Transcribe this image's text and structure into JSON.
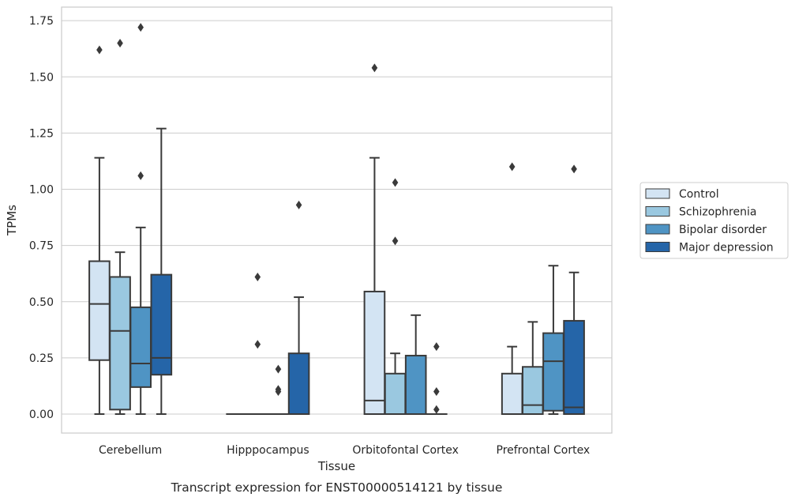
{
  "caption": "Transcript expression for ENST00000514121 by tissue",
  "chart_data": {
    "type": "box",
    "xlabel": "Tissue",
    "ylabel": "TPMs",
    "ylim": [
      -0.08,
      1.81
    ],
    "yticks": [
      "0.00",
      "0.25",
      "0.50",
      "0.75",
      "1.00",
      "1.25",
      "1.50",
      "1.75"
    ],
    "grid": "horizontal",
    "legend_position": "right",
    "categories": [
      "Cerebellum",
      "Hipppocampus",
      "Orbitofontal Cortex",
      "Prefrontal Cortex"
    ],
    "series": [
      {
        "name": "Control",
        "color": "#d3e4f3",
        "boxes": [
          {
            "whislo": 0.0,
            "q1": 0.24,
            "med": 0.49,
            "q3": 0.68,
            "whishi": 1.14,
            "fliers": [
              1.62
            ]
          },
          {
            "whislo": 0.0,
            "q1": 0.0,
            "med": 0.0,
            "q3": 0.0,
            "whishi": 0.0,
            "fliers": []
          },
          {
            "whislo": 0.0,
            "q1": 0.0,
            "med": 0.06,
            "q3": 0.545,
            "whishi": 1.14,
            "fliers": [
              1.54
            ]
          },
          {
            "whislo": 0.0,
            "q1": 0.0,
            "med": 0.0,
            "q3": 0.18,
            "whishi": 0.3,
            "fliers": [
              1.1
            ]
          }
        ]
      },
      {
        "name": "Schizophrenia",
        "color": "#9ac8e0",
        "boxes": [
          {
            "whislo": 0.0,
            "q1": 0.02,
            "med": 0.37,
            "q3": 0.61,
            "whishi": 0.72,
            "fliers": [
              1.65
            ]
          },
          {
            "whislo": 0.0,
            "q1": 0.0,
            "med": 0.0,
            "q3": 0.0,
            "whishi": 0.0,
            "fliers": [
              0.61,
              0.31
            ]
          },
          {
            "whislo": 0.0,
            "q1": 0.0,
            "med": 0.0,
            "q3": 0.18,
            "whishi": 0.27,
            "fliers": [
              1.03,
              0.77
            ]
          },
          {
            "whislo": 0.0,
            "q1": 0.0,
            "med": 0.04,
            "q3": 0.21,
            "whishi": 0.41,
            "fliers": []
          }
        ]
      },
      {
        "name": "Bipolar disorder",
        "color": "#4f94c4",
        "boxes": [
          {
            "whislo": 0.0,
            "q1": 0.12,
            "med": 0.225,
            "q3": 0.475,
            "whishi": 0.83,
            "fliers": [
              1.72,
              1.06
            ]
          },
          {
            "whislo": 0.0,
            "q1": 0.0,
            "med": 0.0,
            "q3": 0.0,
            "whishi": 0.0,
            "fliers": [
              0.2,
              0.11,
              0.1
            ]
          },
          {
            "whislo": 0.0,
            "q1": 0.0,
            "med": 0.0,
            "q3": 0.26,
            "whishi": 0.44,
            "fliers": []
          },
          {
            "whislo": 0.0,
            "q1": 0.015,
            "med": 0.235,
            "q3": 0.36,
            "whishi": 0.66,
            "fliers": []
          }
        ]
      },
      {
        "name": "Major depression",
        "color": "#2565a8",
        "boxes": [
          {
            "whislo": 0.0,
            "q1": 0.175,
            "med": 0.25,
            "q3": 0.62,
            "whishi": 1.27,
            "fliers": []
          },
          {
            "whislo": 0.0,
            "q1": 0.0,
            "med": 0.0,
            "q3": 0.27,
            "whishi": 0.52,
            "fliers": [
              0.93
            ]
          },
          {
            "whislo": 0.0,
            "q1": 0.0,
            "med": 0.0,
            "q3": 0.0,
            "whishi": 0.0,
            "fliers": [
              0.3,
              0.1,
              0.02
            ]
          },
          {
            "whislo": 0.0,
            "q1": 0.0,
            "med": 0.03,
            "q3": 0.415,
            "whishi": 0.63,
            "fliers": [
              1.09
            ]
          }
        ]
      }
    ]
  }
}
